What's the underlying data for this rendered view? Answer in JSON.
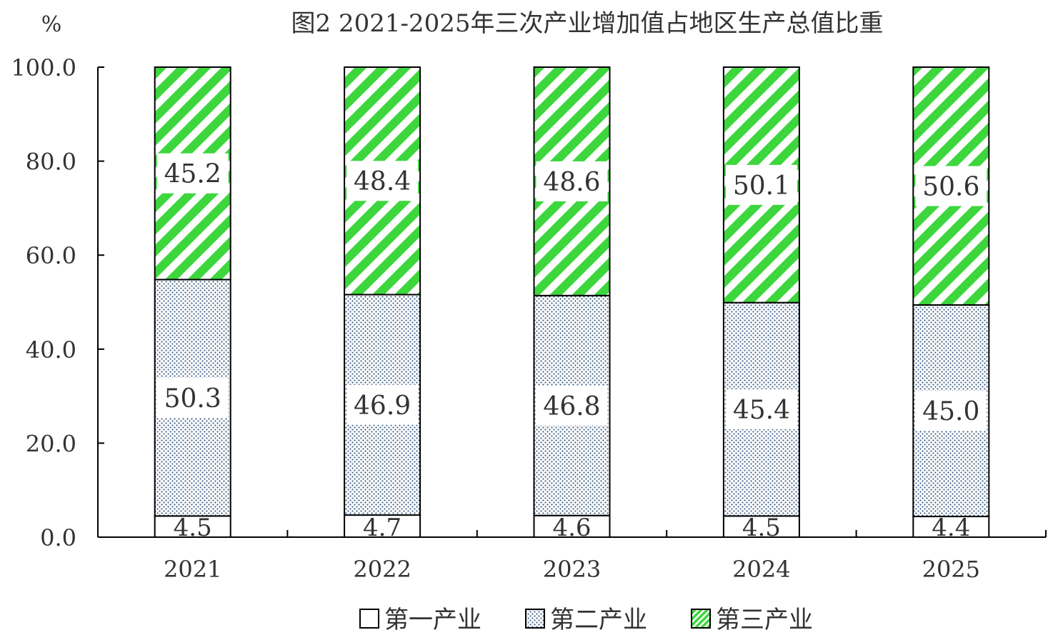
{
  "chart_data": {
    "type": "bar",
    "stacked": true,
    "title": "图2  2021-2025年三次产业增加值占地区生产总值比重",
    "ylabel": "%",
    "xlabel": "",
    "ylim": [
      0,
      100
    ],
    "yticks": [
      "0.0",
      "20.0",
      "40.0",
      "60.0",
      "80.0",
      "100.0"
    ],
    "ytick_values": [
      0,
      20,
      40,
      60,
      80,
      100
    ],
    "categories": [
      "2021",
      "2022",
      "2023",
      "2024",
      "2025"
    ],
    "series": [
      {
        "name": "第一产业",
        "values": [
          4.5,
          4.7,
          4.6,
          4.5,
          4.4
        ],
        "labels": [
          "4.5",
          "4.7",
          "4.6",
          "4.5",
          "4.4"
        ],
        "fill": "white",
        "color": "#ffffff"
      },
      {
        "name": "第二产业",
        "values": [
          50.3,
          46.9,
          46.8,
          45.4,
          45.0
        ],
        "labels": [
          "50.3",
          "46.9",
          "46.8",
          "45.4",
          "45.0"
        ],
        "fill": "dotted-crosshatch",
        "color": "#4a6a8c"
      },
      {
        "name": "第三产业",
        "values": [
          45.2,
          48.4,
          48.6,
          50.1,
          50.6
        ],
        "labels": [
          "45.2",
          "48.4",
          "48.6",
          "50.1",
          "50.6"
        ],
        "fill": "green-diagonal-stripes",
        "color": "#3dd63d"
      }
    ],
    "legend": {
      "placement": "bottom-center",
      "items": [
        "第一产业",
        "第二产业",
        "第三产业"
      ]
    },
    "grid": false
  }
}
